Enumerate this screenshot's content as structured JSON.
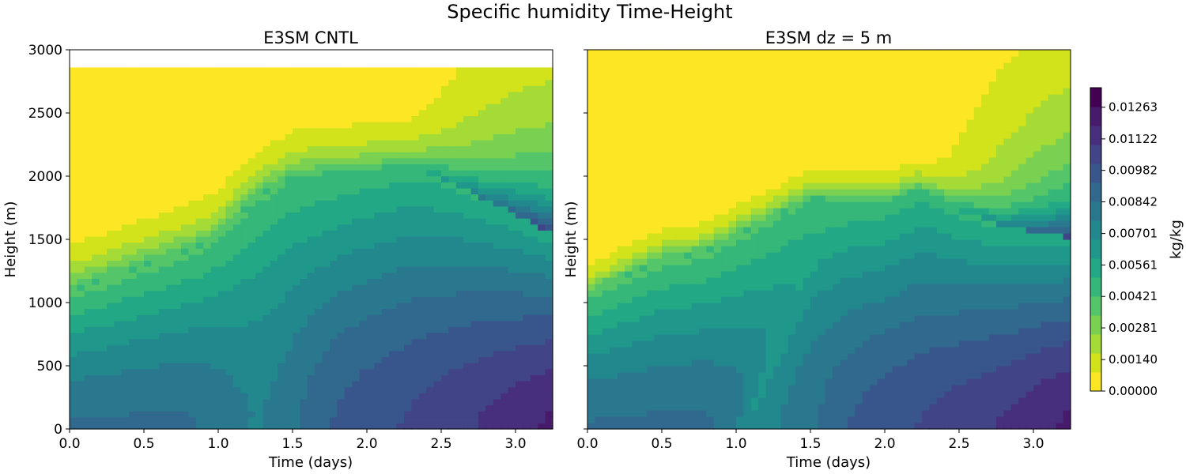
{
  "chart_data": {
    "type": "heatmap",
    "title": "Specific humidity Time-Height",
    "colorbar": {
      "label": "kg/kg",
      "ticks": [
        "0.00000",
        "0.00140",
        "0.00281",
        "0.00421",
        "0.00561",
        "0.00701",
        "0.00842",
        "0.00982",
        "0.01122",
        "0.01263"
      ],
      "range": [
        0.0,
        0.0135
      ],
      "colors": [
        "#fde725",
        "#d2e21b",
        "#a5db36",
        "#7ad151",
        "#54c568",
        "#35b779",
        "#22a884",
        "#1f988b",
        "#23888e",
        "#2a788e",
        "#31688e",
        "#39568c",
        "#414487",
        "#472f7d",
        "#481a6c",
        "#440154"
      ]
    },
    "panels": [
      {
        "title": "E3SM CNTL",
        "xlabel": "Time (days)",
        "ylabel": "Height (m)",
        "xlim": [
          0,
          3.25
        ],
        "ylim": [
          0,
          3000
        ],
        "xticks": [
          "0.0",
          "0.5",
          "1.0",
          "1.5",
          "2.0",
          "2.5",
          "3.0"
        ],
        "yticks": [
          "0",
          "500",
          "1000",
          "1500",
          "2000",
          "2500",
          "3000"
        ],
        "data_top": 2860,
        "pbl_height": [
          [
            0,
            1090
          ],
          [
            0.5,
            1290
          ],
          [
            0.9,
            1450
          ],
          [
            1.0,
            1530
          ],
          [
            1.25,
            1820
          ],
          [
            1.5,
            1990
          ],
          [
            2.0,
            2050
          ],
          [
            2.3,
            2080
          ],
          [
            2.5,
            1990
          ],
          [
            3.0,
            1700
          ],
          [
            3.25,
            1540
          ]
        ]
      },
      {
        "title": "E3SM dz = 5 m",
        "xlabel": "Time (days)",
        "ylabel": "Height (m)",
        "xlim": [
          0,
          3.25
        ],
        "ylim": [
          0,
          3000
        ],
        "xticks": [
          "0.0",
          "0.5",
          "1.0",
          "1.5",
          "2.0",
          "2.5",
          "3.0"
        ],
        "yticks": [
          "0",
          "500",
          "1000",
          "1500",
          "2000",
          "2500",
          "3000"
        ],
        "data_top": 3000,
        "pbl_height": [
          [
            0,
            1070
          ],
          [
            0.5,
            1340
          ],
          [
            0.8,
            1400
          ],
          [
            1.0,
            1530
          ],
          [
            1.5,
            1820
          ],
          [
            2.0,
            1800
          ],
          [
            2.25,
            1900
          ],
          [
            2.5,
            1730
          ],
          [
            2.8,
            1600
          ],
          [
            3.25,
            1520
          ]
        ]
      }
    ]
  }
}
